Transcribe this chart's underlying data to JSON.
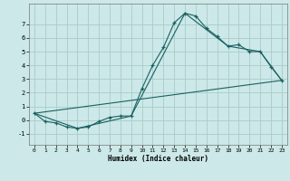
{
  "xlabel": "Humidex (Indice chaleur)",
  "bg_color": "#cce8e8",
  "grid_color": "#aacccc",
  "line_color": "#1a6060",
  "xlim": [
    -0.5,
    23.5
  ],
  "ylim": [
    -1.8,
    8.5
  ],
  "yticks": [
    -1,
    0,
    1,
    2,
    3,
    4,
    5,
    6,
    7
  ],
  "xticks": [
    0,
    1,
    2,
    3,
    4,
    5,
    6,
    7,
    8,
    9,
    10,
    11,
    12,
    13,
    14,
    15,
    16,
    17,
    18,
    19,
    20,
    21,
    22,
    23
  ],
  "line1_x": [
    0,
    1,
    2,
    3,
    4,
    5,
    6,
    7,
    8,
    9,
    10,
    11,
    12,
    13,
    14,
    15,
    16,
    17,
    18,
    19,
    20,
    21,
    22,
    23
  ],
  "line1_y": [
    0.5,
    -0.1,
    -0.2,
    -0.5,
    -0.6,
    -0.5,
    -0.1,
    0.2,
    0.3,
    0.3,
    2.3,
    4.0,
    5.3,
    7.1,
    7.8,
    7.6,
    6.7,
    6.1,
    5.4,
    5.5,
    5.0,
    5.0,
    3.9,
    2.9
  ],
  "line2_x": [
    0,
    4,
    9,
    14,
    18,
    21,
    23
  ],
  "line2_y": [
    0.5,
    -0.6,
    0.3,
    7.8,
    5.4,
    5.0,
    2.9
  ],
  "line3_x": [
    0,
    23
  ],
  "line3_y": [
    0.5,
    2.9
  ]
}
